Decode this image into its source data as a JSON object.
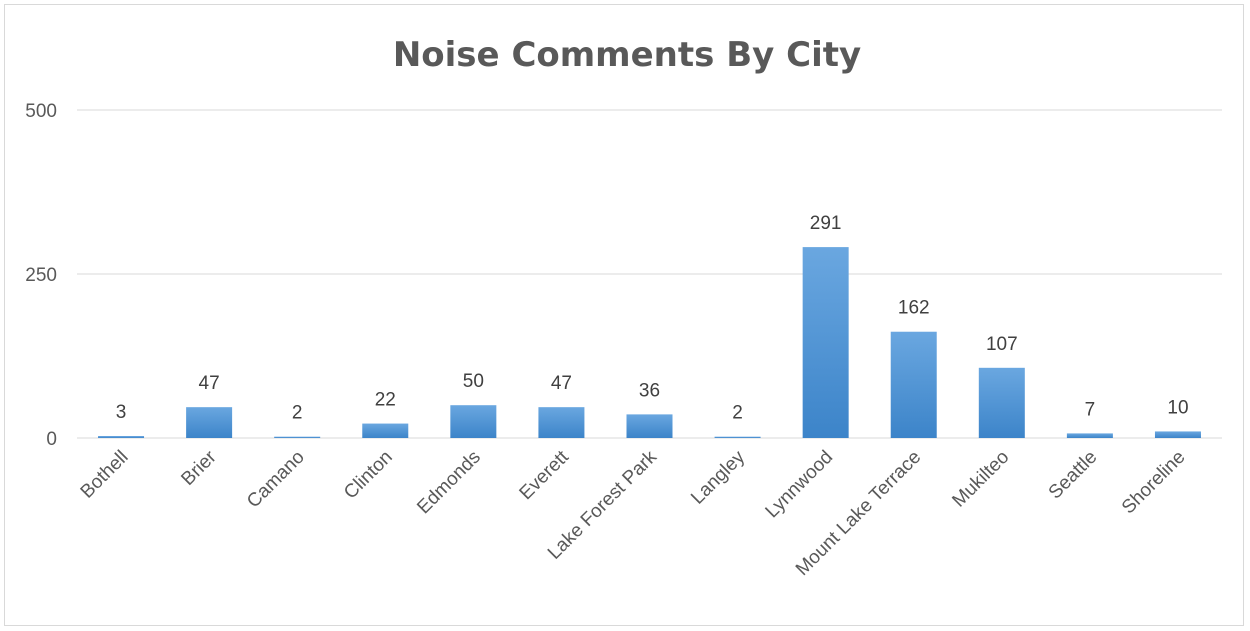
{
  "chart_data": {
    "type": "bar",
    "title": "Noise Comments By City",
    "xlabel": "",
    "ylabel": "",
    "ylim": [
      0,
      500
    ],
    "yticks": [
      0,
      250,
      500
    ],
    "grid": true,
    "legend": "none",
    "bar_color": "#5b9bd5",
    "categories": [
      "Bothell",
      "Brier",
      "Camano",
      "Clinton",
      "Edmonds",
      "Everett",
      "Lake Forest Park",
      "Langley",
      "Lynnwood",
      "Mount Lake Terrace",
      "Mukilteo",
      "Seattle",
      "Shoreline"
    ],
    "values": [
      3,
      47,
      2,
      22,
      50,
      47,
      36,
      2,
      291,
      162,
      107,
      7,
      10
    ]
  }
}
